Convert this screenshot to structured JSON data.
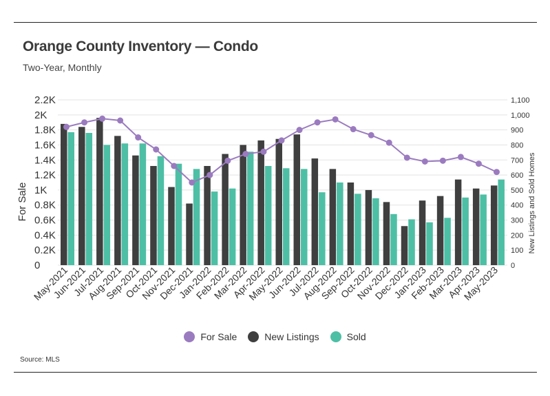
{
  "chart_data": {
    "type": "bar+line",
    "title": "Orange County Inventory — Condo",
    "subtitle": "Two-Year, Monthly",
    "source": "Source:  MLS",
    "categories": [
      "May-2021",
      "Jun-2021",
      "Jul-2021",
      "Aug-2021",
      "Sep-2021",
      "Oct-2021",
      "Nov-2021",
      "Dec-2021",
      "Jan-2022",
      "Feb-2022",
      "Mar-2022",
      "Apr-2022",
      "May-2022",
      "Jun-2022",
      "Jul-2022",
      "Aug-2022",
      "Sep-2022",
      "Oct-2022",
      "Nov-2022",
      "Dec-2022",
      "Jan-2023",
      "Feb-2023",
      "Mar-2023",
      "Apr-2023",
      "May-2023"
    ],
    "left_axis": {
      "label": "For Sale",
      "range": [
        0,
        2200
      ],
      "ticks": [
        0,
        200,
        400,
        600,
        800,
        1000,
        1200,
        1400,
        1600,
        1800,
        2000,
        2200
      ],
      "tick_labels": [
        "0",
        "0.2K",
        "0.4K",
        "0.6K",
        "0.8K",
        "1K",
        "1.2K",
        "1.4K",
        "1.6K",
        "1.8K",
        "2K",
        "2.2K"
      ]
    },
    "right_axis": {
      "label": "New Listings and Sold Homes",
      "range": [
        0,
        1100
      ],
      "ticks": [
        0,
        100,
        200,
        300,
        400,
        500,
        600,
        700,
        800,
        900,
        1000,
        1100
      ],
      "tick_labels": [
        "0",
        "100",
        "200",
        "300",
        "400",
        "500",
        "600",
        "700",
        "800",
        "900",
        "1,000",
        "1,100"
      ]
    },
    "series": [
      {
        "name": "For Sale",
        "kind": "line",
        "axis": "left",
        "color": "#9b7bbf",
        "values": [
          1840,
          1900,
          1950,
          1925,
          1700,
          1540,
          1320,
          1100,
          1200,
          1390,
          1480,
          1510,
          1660,
          1800,
          1900,
          1940,
          1810,
          1730,
          1630,
          1430,
          1380,
          1390,
          1440,
          1350,
          1240
        ]
      },
      {
        "name": "New Listings",
        "kind": "bar",
        "axis": "right",
        "color": "#3f3f3f",
        "values": [
          940,
          920,
          980,
          860,
          730,
          660,
          520,
          410,
          660,
          740,
          800,
          830,
          840,
          870,
          710,
          640,
          550,
          500,
          420,
          260,
          430,
          460,
          570,
          510,
          530
        ]
      },
      {
        "name": "Sold",
        "kind": "bar",
        "axis": "right",
        "color": "#4dbfa5",
        "values": [
          885,
          880,
          800,
          810,
          810,
          725,
          675,
          640,
          490,
          510,
          755,
          660,
          645,
          640,
          485,
          550,
          475,
          445,
          340,
          305,
          285,
          315,
          450,
          470,
          570
        ]
      }
    ],
    "legend": [
      "For Sale",
      "New Listings",
      "Sold"
    ],
    "legend_position": "bottom-center",
    "grid": true
  }
}
